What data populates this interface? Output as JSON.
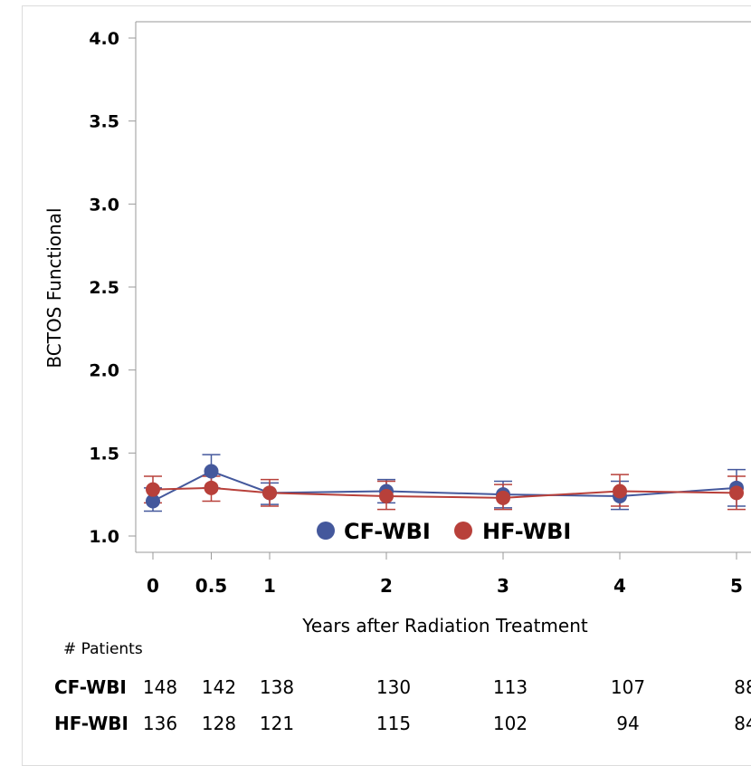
{
  "chart_data": {
    "type": "line",
    "xlabel": "Years after Radiation Treatment",
    "ylabel": "BCTOS  Functional",
    "ylim": [
      1.0,
      4.0
    ],
    "yticks": [
      "1.0",
      "1.5",
      "2.0",
      "2.5",
      "3.0",
      "3.5",
      "4.0"
    ],
    "xlim": [
      0,
      5
    ],
    "x": [
      0,
      0.5,
      1,
      2,
      3,
      4,
      5
    ],
    "xtick_labels": [
      "0",
      "0.5",
      "1",
      "2",
      "3",
      "4",
      "5"
    ],
    "legend_placement": "bottom-center",
    "grid": false,
    "series": [
      {
        "name": "CF-WBI",
        "color": "#44589c",
        "values": [
          1.21,
          1.39,
          1.26,
          1.27,
          1.25,
          1.24,
          1.29
        ],
        "lower": [
          1.15,
          1.29,
          1.19,
          1.2,
          1.17,
          1.16,
          1.18
        ],
        "upper": [
          1.29,
          1.49,
          1.32,
          1.34,
          1.33,
          1.33,
          1.4
        ]
      },
      {
        "name": "HF-WBI",
        "color": "#b8403a",
        "values": [
          1.28,
          1.29,
          1.26,
          1.24,
          1.23,
          1.27,
          1.26
        ],
        "lower": [
          1.2,
          1.21,
          1.18,
          1.16,
          1.16,
          1.18,
          1.16
        ],
        "upper": [
          1.36,
          1.36,
          1.34,
          1.33,
          1.31,
          1.37,
          1.36
        ]
      }
    ]
  },
  "patients_table": {
    "title": "# Patients",
    "rows": [
      {
        "label": "CF-WBI",
        "counts": [
          "148",
          "142",
          "138",
          "130",
          "113",
          "107",
          "88"
        ]
      },
      {
        "label": "HF-WBI",
        "counts": [
          "136",
          "128",
          "121",
          "115",
          "102",
          "94",
          "84"
        ]
      }
    ]
  }
}
